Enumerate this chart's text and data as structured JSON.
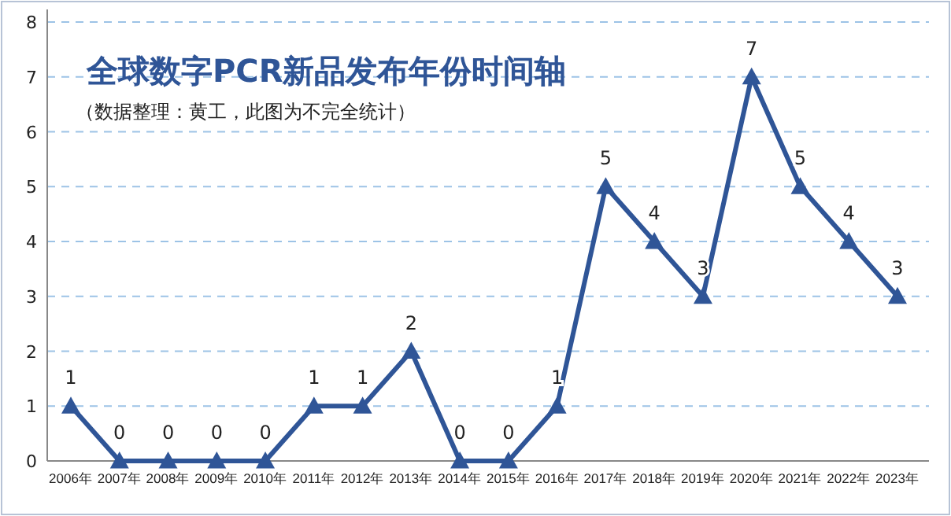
{
  "chart_data": {
    "type": "line",
    "title": "全球数字PCR新品发布年份时间轴",
    "subtitle": "（数据整理：黄工，此图为不完全统计）",
    "categories": [
      "2006年",
      "2007年",
      "2008年",
      "2009年",
      "2010年",
      "2011年",
      "2012年",
      "2013年",
      "2014年",
      "2015年",
      "2016年",
      "2017年",
      "2018年",
      "2019年",
      "2020年",
      "2021年",
      "2022年",
      "2023年"
    ],
    "values": [
      1,
      0,
      0,
      0,
      0,
      1,
      1,
      2,
      0,
      0,
      1,
      5,
      4,
      3,
      7,
      5,
      4,
      3
    ],
    "color": "#2f5597",
    "ylim": [
      0,
      8
    ],
    "yticks": [
      0,
      1,
      2,
      3,
      4,
      5,
      6,
      7,
      8
    ],
    "grid": "y",
    "marker": "triangle",
    "line_style": "solid",
    "data_labels": true
  }
}
